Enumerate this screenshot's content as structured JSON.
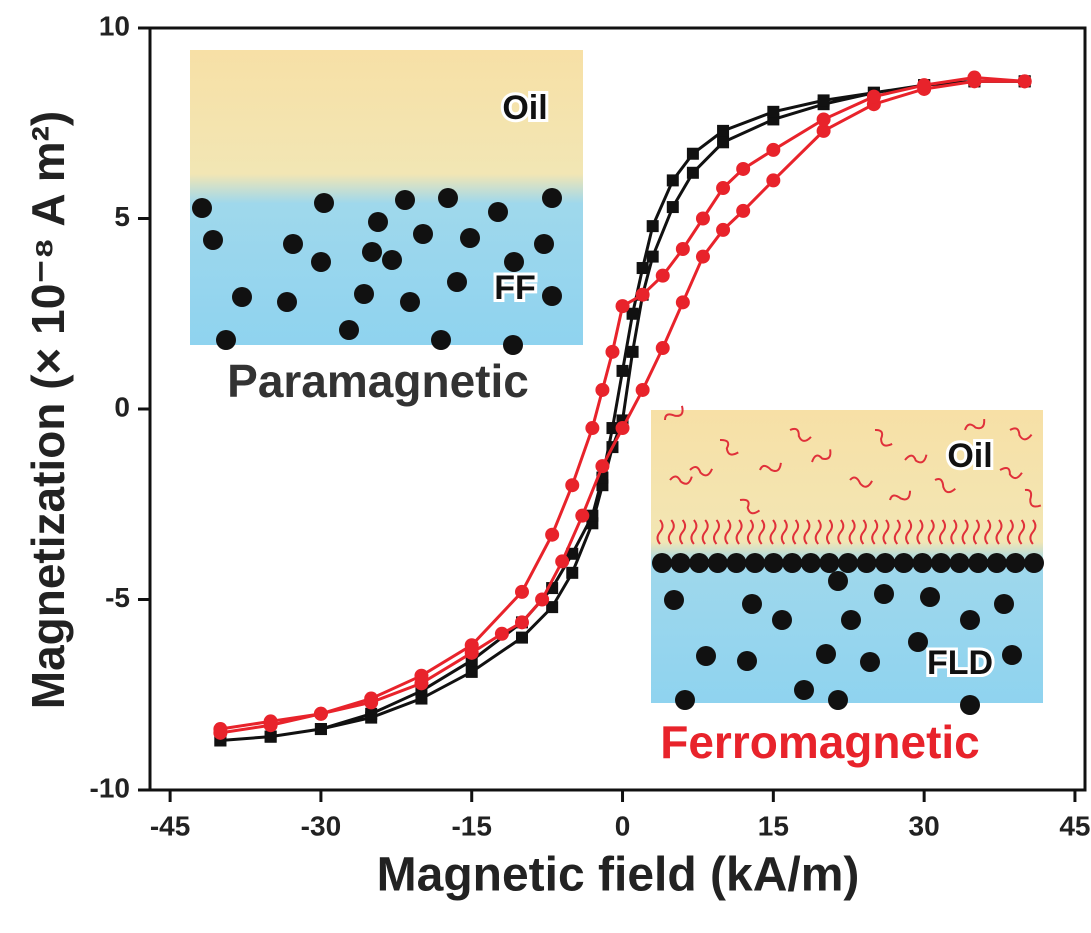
{
  "chart_data": {
    "type": "scatter-line",
    "xlabel": "Magnetic field (kA/m)",
    "ylabel": "Magnetization (× 10⁻⁸  A m²)",
    "xlim": [
      -47,
      46
    ],
    "xticks": [
      -45,
      -30,
      -15,
      0,
      15,
      30,
      45
    ],
    "ylim": [
      -10,
      10
    ],
    "yticks": [
      -10,
      -5,
      0,
      5,
      10
    ],
    "annotations": [
      "Oil",
      "FF",
      "Paramagnetic",
      "Oil",
      "FLD",
      "Ferromagnetic"
    ],
    "series": [
      {
        "color": "#111111",
        "marker": "square",
        "x": [
          -40,
          -35,
          -30,
          -25,
          -20,
          -15,
          -10,
          -7,
          -5,
          -3,
          -2,
          -1,
          0,
          1,
          2,
          3,
          5,
          7,
          10,
          15,
          20,
          25,
          30,
          35,
          40,
          40,
          35,
          30,
          25,
          20,
          15,
          10,
          7,
          5,
          3,
          2,
          1,
          0,
          -1,
          -2,
          -3,
          -5,
          -7,
          -10,
          -15,
          -20,
          -25,
          -30,
          -35,
          -40
        ],
        "values": [
          -8.7,
          -8.6,
          -8.4,
          -8.1,
          -7.6,
          -6.9,
          -6.0,
          -5.2,
          -4.3,
          -3.0,
          -2.0,
          -1.0,
          -0.3,
          1.5,
          3.0,
          4.0,
          5.3,
          6.2,
          7.0,
          7.6,
          8.0,
          8.3,
          8.5,
          8.6,
          8.6,
          8.6,
          8.6,
          8.5,
          8.3,
          8.1,
          7.8,
          7.3,
          6.7,
          6.0,
          4.8,
          3.7,
          2.5,
          1.0,
          -0.5,
          -1.8,
          -2.8,
          -3.8,
          -4.7,
          -5.6,
          -6.6,
          -7.4,
          -8.0,
          -8.4,
          -8.6,
          -8.7
        ]
      },
      {
        "color": "#e8232b",
        "marker": "circle",
        "x": [
          -40,
          -35,
          -30,
          -25,
          -20,
          -15,
          -12,
          -10,
          -8,
          -6,
          -4,
          -2,
          0,
          2,
          4,
          6,
          8,
          10,
          12,
          15,
          20,
          25,
          30,
          35,
          40,
          40,
          35,
          30,
          25,
          20,
          15,
          12,
          10,
          8,
          6,
          4,
          2,
          0,
          -1,
          -2,
          -3,
          -5,
          -7,
          -10,
          -15,
          -20,
          -25,
          -30,
          -35,
          -40
        ],
        "values": [
          -8.4,
          -8.2,
          -8.0,
          -7.7,
          -7.2,
          -6.4,
          -5.9,
          -5.6,
          -5.0,
          -4.0,
          -2.8,
          -1.5,
          -0.5,
          0.5,
          1.6,
          2.8,
          4.0,
          4.7,
          5.2,
          6.0,
          7.3,
          8.0,
          8.4,
          8.6,
          8.6,
          8.6,
          8.7,
          8.5,
          8.2,
          7.6,
          6.8,
          6.3,
          5.8,
          5.0,
          4.2,
          3.5,
          3.0,
          2.7,
          1.5,
          0.5,
          -0.5,
          -2.0,
          -3.3,
          -4.8,
          -6.2,
          -7.0,
          -7.6,
          -8.0,
          -8.3,
          -8.5
        ]
      }
    ]
  }
}
